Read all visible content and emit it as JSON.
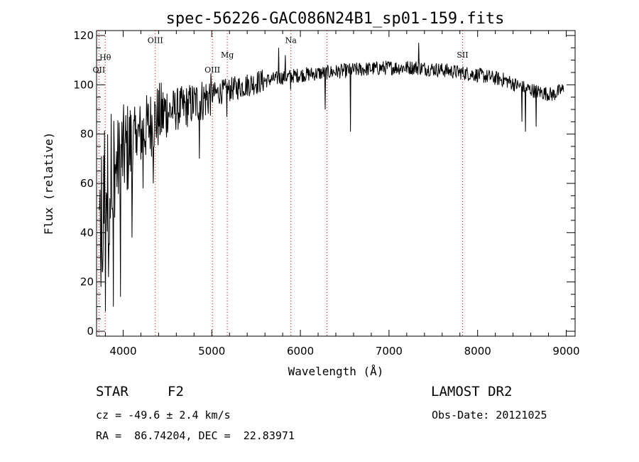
{
  "chart_data": {
    "type": "line",
    "title": "spec-56226-GAC086N24B1_sp01-159.fits",
    "xlabel": "Wavelength (Å)",
    "ylabel": "Flux (relative)",
    "xlim": [
      3700,
      9100
    ],
    "ylim": [
      -2,
      122
    ],
    "xticks": [
      4000,
      5000,
      6000,
      7000,
      8000,
      9000
    ],
    "yticks": [
      0,
      20,
      40,
      60,
      80,
      100,
      120
    ],
    "x_minor_step": 200,
    "y_minor_step": 5,
    "line_color": "#000000",
    "marker_color": "#cc0000",
    "spectrum_anchors": [
      [
        3730,
        40
      ],
      [
        3760,
        60
      ],
      [
        3800,
        55
      ],
      [
        3850,
        60
      ],
      [
        3900,
        65
      ],
      [
        3950,
        68
      ],
      [
        4000,
        72
      ],
      [
        4100,
        76
      ],
      [
        4200,
        80
      ],
      [
        4300,
        84
      ],
      [
        4400,
        87
      ],
      [
        4500,
        89
      ],
      [
        4700,
        91
      ],
      [
        4900,
        94
      ],
      [
        5000,
        96
      ],
      [
        5200,
        98
      ],
      [
        5500,
        101
      ],
      [
        5800,
        103
      ],
      [
        6000,
        104
      ],
      [
        6300,
        105
      ],
      [
        6600,
        106
      ],
      [
        7000,
        107
      ],
      [
        7300,
        107
      ],
      [
        7600,
        106
      ],
      [
        8000,
        104
      ],
      [
        8300,
        102
      ],
      [
        8500,
        99
      ],
      [
        8700,
        97
      ],
      [
        8850,
        96
      ],
      [
        8960,
        98
      ]
    ],
    "absorption_features": [
      {
        "wave": 3750,
        "flux": 18
      },
      {
        "wave": 3770,
        "flux": 25
      },
      {
        "wave": 3800,
        "flux": 8
      },
      {
        "wave": 3835,
        "flux": 22
      },
      {
        "wave": 3890,
        "flux": 10
      },
      {
        "wave": 3970,
        "flux": 14
      },
      {
        "wave": 4102,
        "flux": 38
      },
      {
        "wave": 4227,
        "flux": 58
      },
      {
        "wave": 4340,
        "flux": 60
      },
      {
        "wave": 4861,
        "flux": 70
      },
      {
        "wave": 5170,
        "flux": 87
      },
      {
        "wave": 5890,
        "flux": 98
      },
      {
        "wave": 6280,
        "flux": 90
      },
      {
        "wave": 6563,
        "flux": 81
      },
      {
        "wave": 8498,
        "flux": 85
      },
      {
        "wave": 8542,
        "flux": 81
      },
      {
        "wave": 8662,
        "flux": 83
      }
    ],
    "emission_spikes": [
      {
        "wave": 5755,
        "flux": 115
      },
      {
        "wave": 5830,
        "flux": 112
      },
      {
        "wave": 7335,
        "flux": 117
      },
      {
        "wave": 3985,
        "flux": 85
      },
      {
        "wave": 4150,
        "flux": 82
      }
    ],
    "line_markers": [
      {
        "label": "OII",
        "wave": 3727,
        "label_flux": 105
      },
      {
        "label": "Hθ",
        "wave": 3798,
        "label_flux": 110
      },
      {
        "label": "OIII",
        "wave": 4363,
        "label_flux": 117
      },
      {
        "label": "OIII",
        "wave": 5007,
        "label_flux": 105
      },
      {
        "label": "Mg",
        "wave": 5175,
        "label_flux": 111
      },
      {
        "label": "Na",
        "wave": 5893,
        "label_flux": 117
      },
      {
        "label": "",
        "wave": 6300,
        "label_flux": 0
      },
      {
        "label": "SII",
        "wave": 7830,
        "label_flux": 111
      }
    ]
  },
  "info": {
    "object_class": "STAR",
    "subclass": "F2",
    "survey": "LAMOST DR2",
    "cz": "cz = -49.6 ± 2.4 km/s",
    "obs_date": "Obs-Date: 20121025",
    "coords": "RA =  86.74204, DEC =  22.83971"
  }
}
